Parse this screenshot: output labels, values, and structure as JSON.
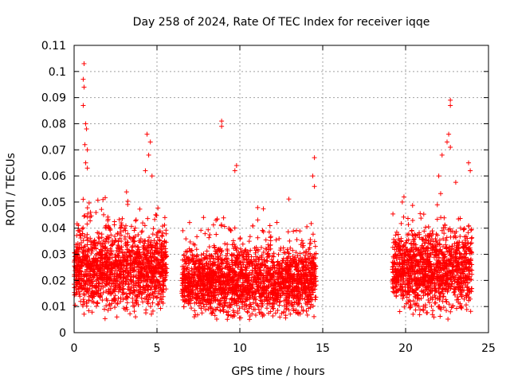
{
  "chart_data": {
    "type": "scatter",
    "title": "Day 258 of 2024, Rate Of TEC Index for receiver iqqe",
    "xlabel": "GPS time / hours",
    "ylabel": "ROTI / TECUs",
    "xlim": [
      0,
      25
    ],
    "ylim": [
      0,
      0.11
    ],
    "x_ticks": [
      "0",
      "5",
      "10",
      "15",
      "20",
      "25"
    ],
    "y_ticks": [
      "0",
      "0.01",
      "0.02",
      "0.03",
      "0.04",
      "0.05",
      "0.06",
      "0.07",
      "0.08",
      "0.09",
      "0.1",
      "0.11"
    ],
    "grid": true,
    "marker": "+",
    "color": "#ff0000",
    "segments": [
      {
        "x_start": 0.0,
        "x_end": 5.6,
        "base": 0.022,
        "spread": 0.014
      },
      {
        "x_start": 6.5,
        "x_end": 14.6,
        "base": 0.018,
        "spread": 0.012
      },
      {
        "x_start": 19.2,
        "x_end": 24.0,
        "base": 0.022,
        "spread": 0.014
      }
    ],
    "highlights": [
      {
        "x": 0.6,
        "y": 0.103
      },
      {
        "x": 0.55,
        "y": 0.097
      },
      {
        "x": 0.6,
        "y": 0.094
      },
      {
        "x": 0.55,
        "y": 0.087
      },
      {
        "x": 0.7,
        "y": 0.08
      },
      {
        "x": 0.75,
        "y": 0.078
      },
      {
        "x": 0.65,
        "y": 0.072
      },
      {
        "x": 0.8,
        "y": 0.07
      },
      {
        "x": 0.7,
        "y": 0.065
      },
      {
        "x": 0.8,
        "y": 0.063
      },
      {
        "x": 4.4,
        "y": 0.076
      },
      {
        "x": 4.6,
        "y": 0.073
      },
      {
        "x": 4.5,
        "y": 0.068
      },
      {
        "x": 4.3,
        "y": 0.062
      },
      {
        "x": 4.7,
        "y": 0.06
      },
      {
        "x": 8.9,
        "y": 0.081
      },
      {
        "x": 8.9,
        "y": 0.079
      },
      {
        "x": 9.8,
        "y": 0.064
      },
      {
        "x": 9.7,
        "y": 0.062
      },
      {
        "x": 14.5,
        "y": 0.067
      },
      {
        "x": 14.4,
        "y": 0.06
      },
      {
        "x": 14.5,
        "y": 0.056
      },
      {
        "x": 22.7,
        "y": 0.089
      },
      {
        "x": 22.7,
        "y": 0.087
      },
      {
        "x": 22.6,
        "y": 0.076
      },
      {
        "x": 22.5,
        "y": 0.073
      },
      {
        "x": 22.7,
        "y": 0.071
      },
      {
        "x": 22.2,
        "y": 0.068
      },
      {
        "x": 23.8,
        "y": 0.065
      },
      {
        "x": 23.9,
        "y": 0.062
      },
      {
        "x": 19.8,
        "y": 0.05
      },
      {
        "x": 19.9,
        "y": 0.052
      },
      {
        "x": 22.0,
        "y": 0.06
      }
    ]
  }
}
